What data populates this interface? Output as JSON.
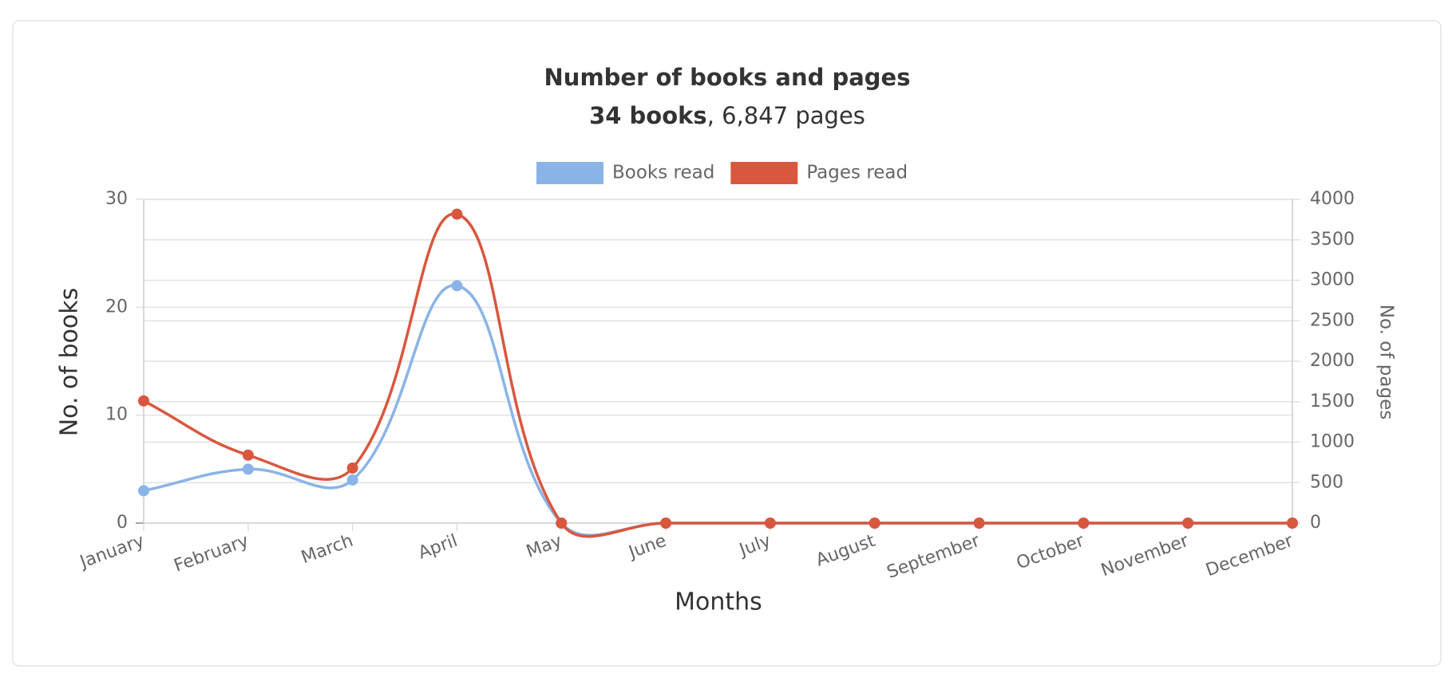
{
  "chart_data": {
    "type": "line",
    "title": "Number of books and pages",
    "subtitle": [
      "34 books",
      ", 6,847 pages"
    ],
    "categories": [
      "January",
      "February",
      "March",
      "April",
      "May",
      "June",
      "July",
      "August",
      "September",
      "October",
      "November",
      "December"
    ],
    "series": [
      {
        "name": "Books read",
        "color": "#8ab4e8",
        "values": [
          3,
          5,
          4,
          22,
          0,
          0,
          0,
          0,
          0,
          0,
          0,
          0
        ]
      },
      {
        "name": "Pages read",
        "color": "#d9573f",
        "axis": "y2",
        "values": [
          1510,
          840,
          680,
          3817,
          0,
          0,
          0,
          0,
          0,
          0,
          0,
          0
        ]
      }
    ],
    "x_label": "Months",
    "y_label": "No. of books",
    "y2_label": "No. of pages",
    "ylim": [
      0,
      30
    ],
    "yticks": [
      0,
      10,
      20,
      30
    ],
    "y2lim": [
      0,
      4000
    ],
    "y2ticks": [
      0,
      500,
      1000,
      1500,
      2000,
      2500,
      3000,
      3500,
      4000
    ],
    "grid": true,
    "legend": "top"
  }
}
